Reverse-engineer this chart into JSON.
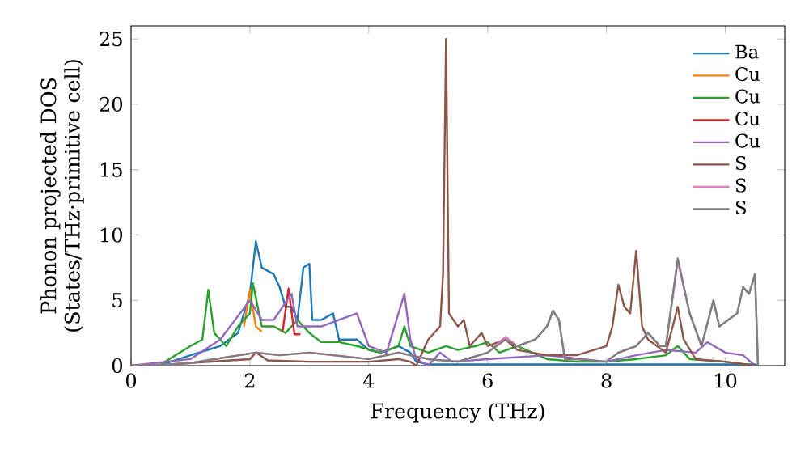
{
  "chart_data": {
    "type": "line",
    "xlabel": "Frequency (THz)",
    "ylabel": "Phonon projected DOS (States/THz·primitive cell)",
    "xlim": [
      0,
      11
    ],
    "ylim": [
      0,
      26
    ],
    "xticks": [
      0,
      2,
      4,
      6,
      8,
      10
    ],
    "yticks": [
      0,
      5,
      10,
      15,
      20,
      25
    ],
    "legend": "top right",
    "grid": false,
    "series": [
      {
        "name": "Ba",
        "color": "#1f77b4",
        "x": [
          0,
          0.5,
          1.0,
          1.5,
          1.8,
          2.0,
          2.1,
          2.2,
          2.4,
          2.5,
          2.6,
          2.7,
          2.8,
          2.9,
          3.0,
          3.05,
          3.2,
          3.4,
          3.5,
          3.8,
          4.0,
          4.2,
          4.5,
          4.7,
          4.8,
          5.0,
          6.0,
          8.0,
          10.5,
          10.55
        ],
        "values": [
          0,
          0.05,
          0.8,
          1.5,
          2.5,
          5.5,
          9.5,
          7.5,
          7,
          6,
          4.5,
          4.5,
          3.5,
          7.5,
          7.8,
          3.5,
          3.5,
          4,
          2,
          2,
          1.2,
          1,
          1.5,
          1,
          0.3,
          0.1,
          0.1,
          0.1,
          0.1,
          0
        ]
      },
      {
        "name": "Cu",
        "color": "#ff7f0e",
        "x": [
          1.9,
          2.0,
          2.1,
          2.2
        ],
        "values": [
          3.0,
          5.8,
          3.0,
          2.6
        ]
      },
      {
        "name": "Cu",
        "color": "#2ca02c",
        "x": [
          0,
          0.5,
          1.0,
          1.2,
          1.3,
          1.4,
          1.6,
          1.8,
          2.0,
          2.05,
          2.2,
          2.4,
          2.6,
          2.8,
          3.0,
          3.2,
          3.5,
          3.8,
          4.2,
          4.5,
          4.6,
          4.7,
          5.0,
          5.3,
          5.5,
          5.8,
          6.0,
          6.2,
          6.5,
          7.0,
          7.5,
          8.0,
          8.5,
          9.0,
          9.2,
          9.4,
          10.0,
          10.5
        ],
        "values": [
          0,
          0.1,
          1.5,
          2,
          5.8,
          2.5,
          1.5,
          3,
          4,
          6.3,
          3,
          3,
          2.5,
          3.5,
          2.5,
          1.8,
          1.8,
          1.5,
          1,
          1.5,
          3,
          1.5,
          1,
          1.5,
          1.2,
          1.5,
          1.8,
          1,
          1.5,
          0.5,
          0.3,
          0.3,
          0.5,
          0.8,
          1.5,
          0.5,
          0.3,
          0
        ]
      },
      {
        "name": "Cu",
        "color": "#d62728",
        "x": [
          2.55,
          2.65,
          2.75,
          2.85
        ],
        "values": [
          2.6,
          5.9,
          2.4,
          2.4
        ]
      },
      {
        "name": "Cu",
        "color": "#9467bd",
        "x": [
          0,
          1.0,
          1.5,
          2.0,
          2.2,
          2.4,
          2.7,
          2.8,
          3.0,
          3.2,
          3.5,
          3.8,
          4.0,
          4.3,
          4.5,
          4.6,
          4.7,
          4.8,
          5.0,
          5.2,
          5.4,
          6.0,
          7.0,
          8.0,
          8.5,
          9.0,
          9.5,
          9.7,
          10.0,
          10.3,
          10.5
        ],
        "values": [
          0,
          0.5,
          2,
          5,
          3.5,
          3.5,
          5.5,
          3,
          3,
          3,
          3.5,
          4,
          1.5,
          1,
          4,
          5.5,
          2,
          0.5,
          0,
          1,
          0.3,
          0.5,
          0.8,
          0.3,
          0.8,
          1.2,
          1,
          1.8,
          1,
          0.8,
          0
        ]
      },
      {
        "name": "S",
        "color": "#8c564b",
        "x": [
          0,
          0.5,
          1,
          2,
          2.1,
          2.3,
          3,
          4,
          4.5,
          4.7,
          4.8,
          5.0,
          5.2,
          5.25,
          5.3,
          5.35,
          5.5,
          5.6,
          5.7,
          5.9,
          6.0,
          6.3,
          6.5,
          7,
          7.5,
          8.0,
          8.1,
          8.2,
          8.3,
          8.4,
          8.5,
          8.6,
          8.7,
          9.0,
          9.2,
          9.3,
          9.5,
          10,
          10.5
        ],
        "values": [
          0,
          0.05,
          0.2,
          0.5,
          1.0,
          0.4,
          0.3,
          0.3,
          0.5,
          0.3,
          0,
          2,
          3,
          7,
          25,
          4,
          3,
          3.5,
          1.5,
          2.5,
          1.5,
          2,
          1.2,
          0.8,
          0.8,
          1.5,
          3,
          6.2,
          4.5,
          4,
          8.8,
          3,
          2,
          1,
          4.5,
          2,
          0.5,
          0.3,
          0
        ]
      },
      {
        "name": "S",
        "color": "#e377c2",
        "x": [
          0,
          0.5,
          1,
          2.1,
          2.5,
          3,
          4,
          4.5,
          5.0,
          5.5,
          6.0,
          6.3,
          6.5,
          6.8,
          7.0,
          7.1,
          7.2,
          7.3,
          7.5,
          8.0,
          8.2,
          8.5,
          8.7,
          8.9,
          9.0,
          9.2,
          9.4,
          9.6,
          9.8,
          9.9,
          10.2,
          10.3,
          10.4,
          10.5,
          10.55
        ],
        "values": [
          0,
          0.05,
          0.2,
          1.0,
          0.8,
          1.0,
          0.5,
          1.0,
          0.5,
          0.3,
          1.0,
          2.2,
          1.5,
          2,
          3,
          4.2,
          3.5,
          0.5,
          0.5,
          0.3,
          1,
          1.5,
          2.5,
          1.5,
          1.5,
          8,
          4,
          1.5,
          5,
          3,
          4,
          6,
          5.5,
          7,
          0
        ]
      },
      {
        "name": "S",
        "color": "#7f7f7f",
        "x": [
          0,
          0.5,
          1,
          2.1,
          2.5,
          3,
          4,
          4.5,
          5.0,
          5.5,
          6.0,
          6.3,
          6.5,
          6.8,
          7.0,
          7.1,
          7.2,
          7.3,
          7.5,
          8.0,
          8.2,
          8.5,
          8.7,
          8.9,
          9.0,
          9.2,
          9.4,
          9.6,
          9.8,
          9.9,
          10.2,
          10.3,
          10.4,
          10.5,
          10.55
        ],
        "values": [
          0,
          0.05,
          0.2,
          1.0,
          0.8,
          1.0,
          0.5,
          1.0,
          0.5,
          0.3,
          1.0,
          2,
          1.5,
          2,
          3,
          4.2,
          3.5,
          0.5,
          0.5,
          0.3,
          1,
          1.5,
          2.5,
          1.5,
          1.5,
          8.2,
          4,
          1.5,
          5,
          3,
          4,
          6,
          5.5,
          7,
          0
        ]
      }
    ]
  }
}
